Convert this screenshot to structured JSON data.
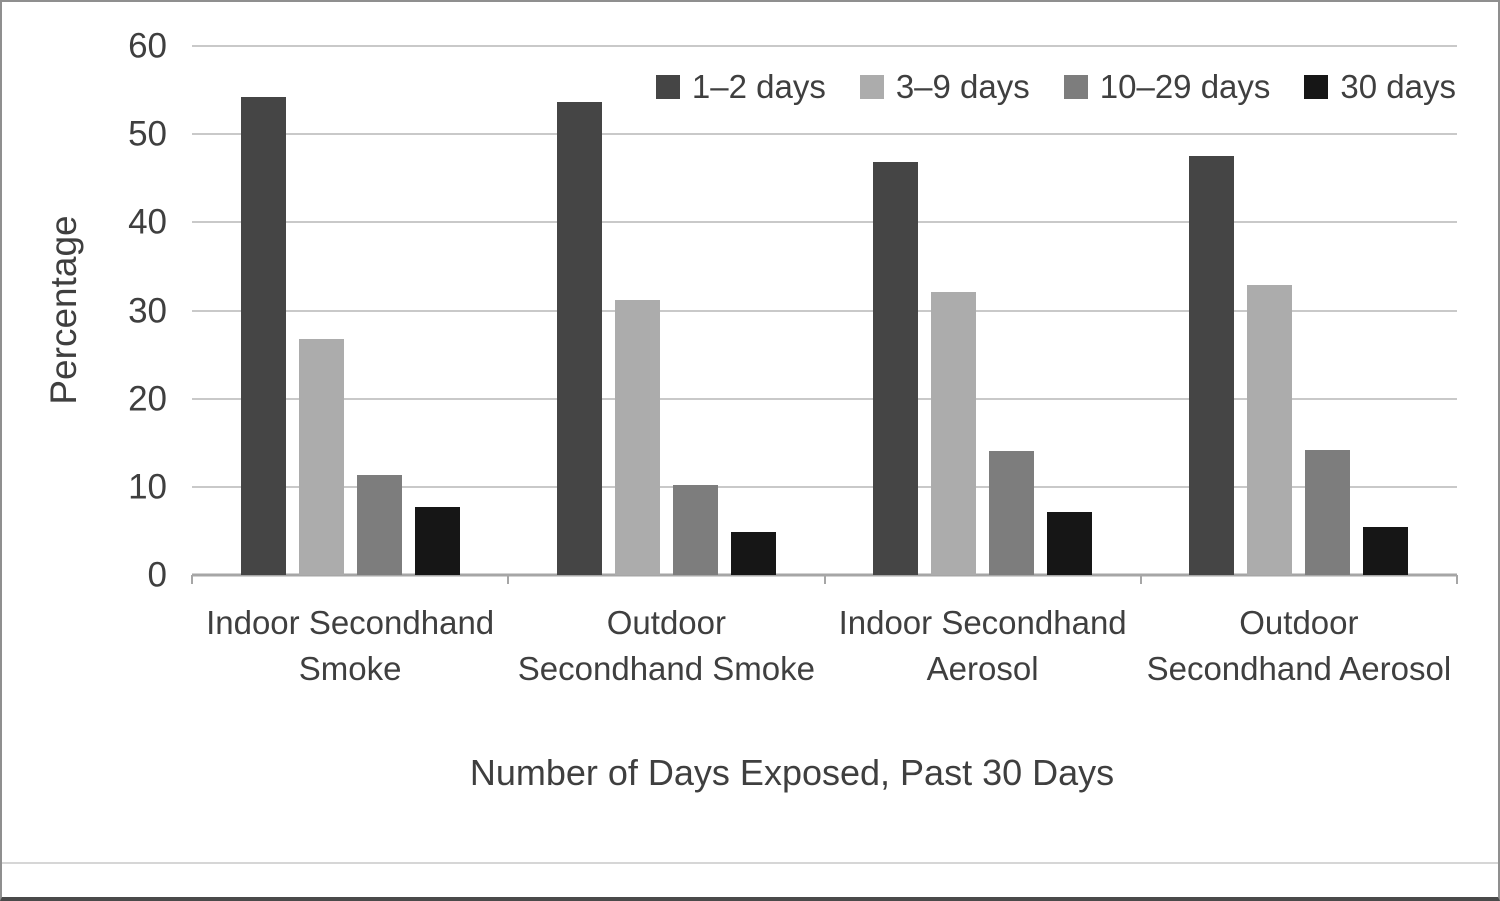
{
  "chart_data": {
    "type": "bar",
    "title": "",
    "xlabel": "Number of Days Exposed, Past 30 Days",
    "ylabel": "Percentage",
    "ylim": [
      0,
      60
    ],
    "yticks": [
      0,
      10,
      20,
      30,
      40,
      50,
      60
    ],
    "grid": true,
    "legend_position": "top-right-inside",
    "categories": [
      "Indoor Secondhand Smoke",
      "Outdoor Secondhand Smoke",
      "Indoor Secondhand Aerosol",
      "Outdoor Secondhand Aerosol"
    ],
    "category_label_lines": [
      [
        "Indoor Secondhand",
        "Smoke"
      ],
      [
        "Outdoor",
        "Secondhand Smoke"
      ],
      [
        "Indoor Secondhand",
        "Aerosol"
      ],
      [
        "Outdoor",
        "Secondhand Aerosol"
      ]
    ],
    "series": [
      {
        "name": "1–2 days",
        "color": "#454545",
        "values": [
          54.2,
          53.6,
          46.8,
          47.5
        ]
      },
      {
        "name": "3–9 days",
        "color": "#acacac",
        "values": [
          26.8,
          31.2,
          32.1,
          32.9
        ]
      },
      {
        "name": "10–29 days",
        "color": "#7d7d7d",
        "values": [
          11.4,
          10.2,
          14.1,
          14.2
        ]
      },
      {
        "name": "30 days",
        "color": "#161616",
        "values": [
          7.7,
          4.9,
          7.1,
          5.4
        ]
      }
    ],
    "axis_colors": {
      "gridline": "#c9c9c9",
      "baseline": "#a6a6a6",
      "text": "#3f3f3f"
    }
  }
}
